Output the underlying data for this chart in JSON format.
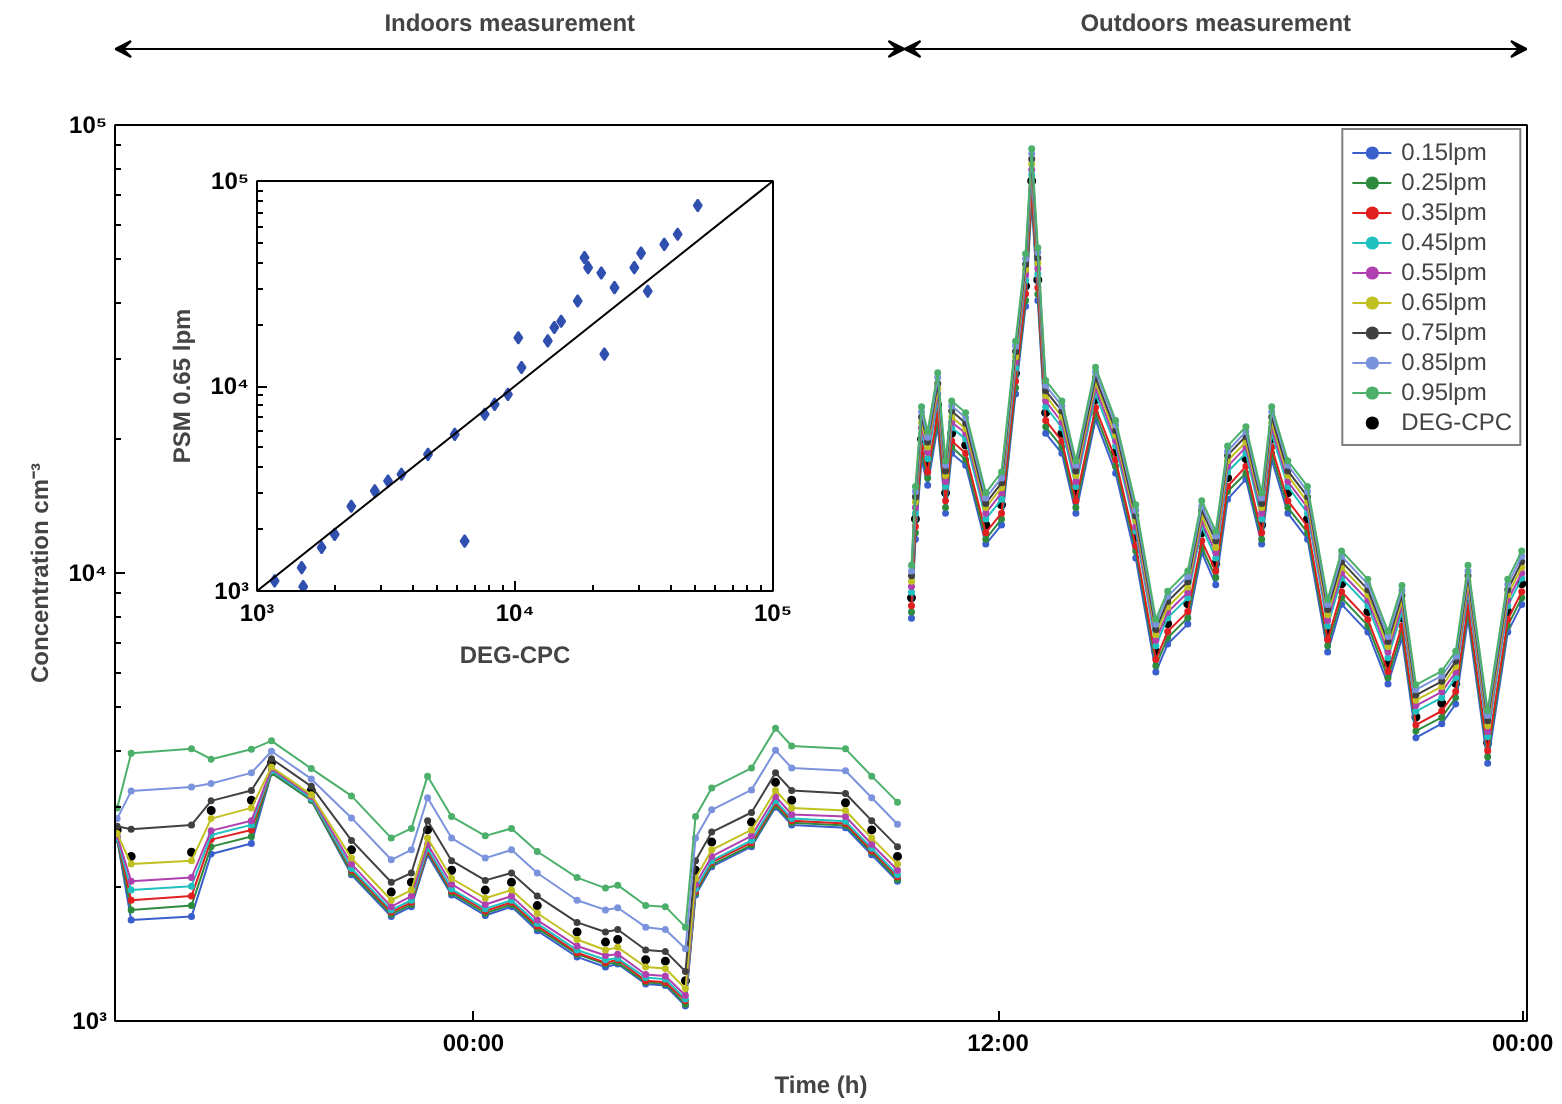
{
  "chart_data": [
    {
      "type": "line",
      "xlabel": "Time (h)",
      "ylabel": "Concentration cm⁻³",
      "log": "y",
      "marker": "circle",
      "line_style": "solid",
      "legend": "top right",
      "grid": false,
      "annotations": [
        "Indoors measurement",
        "Outdoors measurement"
      ],
      "xlim": [
        -8.2,
        24.1
      ],
      "xticks": [
        {
          "value": 0,
          "label": "00:00"
        },
        {
          "value": 12,
          "label": "12:00"
        },
        {
          "value": 24,
          "label": "00:00"
        }
      ],
      "ylim": [
        1000,
        100000
      ],
      "yticks": [
        {
          "value": 1000,
          "label": "10³"
        },
        {
          "value": 10000,
          "label": "10⁴"
        },
        {
          "value": 100000,
          "label": "10⁵"
        }
      ],
      "x": [
        -8.15,
        -7.83,
        -6.45,
        -6.0,
        -5.08,
        -4.62,
        -3.71,
        -2.79,
        -1.88,
        -1.42,
        -1.05,
        -0.5,
        0.27,
        0.87,
        1.46,
        2.37,
        3.02,
        3.3,
        3.94,
        4.39,
        4.85,
        5.08,
        5.45,
        6.36,
        6.91,
        7.28,
        8.51,
        9.11,
        9.7,
        9.86,
        10.02,
        10.11,
        10.25,
        10.39,
        10.62,
        10.8,
        10.94,
        11.26,
        11.72,
        12.08,
        12.4,
        12.63,
        12.77,
        12.91,
        13.09,
        13.46,
        13.78,
        14.23,
        14.69,
        15.15,
        15.61,
        15.88,
        16.34,
        16.66,
        16.98,
        17.25,
        17.67,
        18.03,
        18.26,
        18.63,
        19.08,
        19.54,
        19.86,
        20.46,
        20.92,
        21.24,
        21.56,
        22.15,
        22.47,
        22.75,
        23.2,
        23.66,
        23.98
      ],
      "series": [
        {
          "name": "0.15lpm",
          "color": "#3a5fcd",
          "values": [
            2540,
            1680,
            1710,
            2360,
            2490,
            3580,
            3110,
            2120,
            1710,
            1800,
            2350,
            1910,
            1720,
            1800,
            1590,
            1390,
            1320,
            1340,
            1210,
            1200,
            1080,
            1910,
            2210,
            2450,
            3000,
            2740,
            2700,
            2350,
            2050,
            null,
            7920,
            11900,
            17900,
            15700,
            21300,
            13600,
            18500,
            17400,
            11600,
            12800,
            25100,
            39400,
            67500,
            40600,
            20500,
            18500,
            13600,
            22000,
            16700,
            10800,
            6010,
            6940,
            7690,
            11100,
            9420,
            14600,
            16200,
            11600,
            17900,
            13600,
            11900,
            6660,
            8510,
            7380,
            5650,
            7160,
            4290,
            4610,
            5100,
            7920,
            3760,
            7380,
            8510
          ]
        },
        {
          "name": "0.25lpm",
          "color": "#2e8b3e",
          "values": [
            2540,
            1770,
            1810,
            2450,
            2580,
            3580,
            3110,
            2140,
            1730,
            1820,
            2380,
            1930,
            1740,
            1820,
            1610,
            1410,
            1340,
            1350,
            1220,
            1210,
            1090,
            1930,
            2230,
            2470,
            3030,
            2770,
            2730,
            2380,
            2070,
            null,
            8180,
            12300,
            18500,
            16300,
            22000,
            14000,
            19100,
            17900,
            11900,
            13200,
            25900,
            40600,
            69800,
            41900,
            21200,
            19100,
            14000,
            22700,
            17300,
            11200,
            6210,
            7170,
            7940,
            11400,
            9770,
            15200,
            16700,
            11900,
            18500,
            14000,
            12300,
            6880,
            8800,
            7630,
            5840,
            7390,
            4440,
            4760,
            5270,
            8180,
            3890,
            7630,
            8800
          ]
        },
        {
          "name": "0.35lpm",
          "color": "#e02020",
          "values": [
            2560,
            1860,
            1900,
            2540,
            2670,
            3620,
            3140,
            2170,
            1750,
            1840,
            2400,
            1950,
            1760,
            1840,
            1630,
            1420,
            1350,
            1370,
            1230,
            1220,
            1110,
            1950,
            2260,
            2500,
            3070,
            2800,
            2760,
            2400,
            2100,
            null,
            8450,
            12700,
            19100,
            16800,
            22800,
            14500,
            19700,
            18500,
            12300,
            13600,
            26800,
            42000,
            72000,
            43300,
            21900,
            19700,
            14500,
            23400,
            17900,
            11500,
            6410,
            7400,
            8200,
            11800,
            10100,
            15600,
            17300,
            12300,
            19100,
            14500,
            12700,
            7100,
            9080,
            7870,
            6030,
            7630,
            4580,
            4920,
            5440,
            8450,
            4010,
            7870,
            9080
          ]
        },
        {
          "name": "0.45lpm",
          "color": "#20c0c0",
          "values": [
            2560,
            1960,
            2000,
            2600,
            2740,
            3620,
            3140,
            2190,
            1770,
            1860,
            2430,
            1970,
            1780,
            1860,
            1650,
            1440,
            1370,
            1380,
            1250,
            1240,
            1120,
            1970,
            2280,
            2530,
            3100,
            2830,
            2790,
            2430,
            2120,
            null,
            9060,
            13600,
            20500,
            18000,
            24400,
            15600,
            21100,
            19900,
            13200,
            14600,
            28700,
            45000,
            77300,
            46500,
            23500,
            21100,
            15600,
            25100,
            19200,
            12400,
            6880,
            7940,
            8800,
            12700,
            10800,
            16800,
            18500,
            13200,
            20500,
            15600,
            13600,
            7620,
            9740,
            8450,
            6470,
            8190,
            4910,
            5270,
            5840,
            9060,
            4310,
            8450,
            9740
          ]
        },
        {
          "name": "0.55lpm",
          "color": "#b040b0",
          "values": [
            2590,
            2050,
            2090,
            2660,
            2800,
            3660,
            3170,
            2240,
            1800,
            1900,
            2480,
            2020,
            1820,
            1900,
            1680,
            1470,
            1400,
            1410,
            1270,
            1260,
            1140,
            2020,
            2330,
            2590,
            3170,
            2890,
            2860,
            2480,
            2170,
            null,
            9330,
            14000,
            21100,
            18600,
            25100,
            16000,
            21700,
            20500,
            13600,
            15100,
            29600,
            46300,
            79500,
            47800,
            24200,
            21700,
            16000,
            25900,
            19700,
            12700,
            7080,
            8170,
            9050,
            13000,
            11100,
            17300,
            19100,
            13600,
            21100,
            16000,
            14000,
            7840,
            10000,
            8690,
            6660,
            8430,
            5060,
            5430,
            6010,
            9330,
            4430,
            8690,
            10000
          ]
        },
        {
          "name": "0.65lpm",
          "color": "#c0c020",
          "values": [
            2620,
            2240,
            2280,
            2830,
            2990,
            3690,
            3200,
            2310,
            1860,
            1960,
            2560,
            2080,
            1880,
            1960,
            1740,
            1520,
            1440,
            1460,
            1320,
            1310,
            1180,
            2080,
            2410,
            2670,
            3270,
            2990,
            2950,
            2560,
            2240,
            null,
            9590,
            14400,
            21700,
            19100,
            25800,
            16500,
            22300,
            21000,
            14000,
            15500,
            30400,
            47600,
            81800,
            49200,
            24900,
            22300,
            16500,
            26600,
            20300,
            13100,
            7280,
            8400,
            9310,
            13400,
            11400,
            17800,
            19600,
            14000,
            21700,
            16500,
            14400,
            8070,
            10300,
            8940,
            6850,
            8670,
            5200,
            5580,
            6180,
            9590,
            4560,
            8940,
            10300
          ]
        },
        {
          "name": "0.75lpm",
          "color": "#404040",
          "values": [
            2720,
            2680,
            2740,
            3100,
            3270,
            3850,
            3340,
            2530,
            2040,
            2140,
            2800,
            2280,
            2060,
            2140,
            1900,
            1660,
            1580,
            1600,
            1440,
            1430,
            1290,
            2280,
            2640,
            2920,
            3580,
            3270,
            3220,
            2800,
            2450,
            null,
            9860,
            14800,
            22300,
            19600,
            26500,
            16900,
            23000,
            21600,
            14300,
            15900,
            31200,
            48900,
            84000,
            50500,
            25500,
            23000,
            16900,
            27300,
            20800,
            13400,
            7480,
            8640,
            9560,
            13800,
            11800,
            18300,
            20200,
            14300,
            22300,
            16900,
            14800,
            8290,
            10600,
            9180,
            7030,
            8900,
            5340,
            5730,
            6350,
            9860,
            4680,
            9180,
            10600
          ]
        },
        {
          "name": "0.85lpm",
          "color": "#7b93dd",
          "values": [
            2830,
            3260,
            3330,
            3390,
            3580,
            4000,
            3470,
            2840,
            2290,
            2410,
            3150,
            2560,
            2310,
            2410,
            2140,
            1860,
            1770,
            1790,
            1620,
            1600,
            1450,
            2560,
            2960,
            3280,
            4020,
            3670,
            3620,
            3150,
            2750,
            null,
            10100,
            15200,
            22900,
            20100,
            27300,
            17400,
            23600,
            22200,
            14700,
            16300,
            32100,
            50300,
            86300,
            51900,
            26200,
            23600,
            17400,
            28100,
            21400,
            13800,
            7680,
            8870,
            9820,
            14100,
            12100,
            18700,
            20700,
            14700,
            22900,
            17400,
            15200,
            8510,
            10900,
            9430,
            7220,
            9140,
            5490,
            5890,
            6520,
            10100,
            4810,
            9430,
            10900
          ]
        },
        {
          "name": "0.95lpm",
          "color": "#4caf6a",
          "values": [
            2990,
            3960,
            4050,
            3840,
            4040,
            4220,
            3660,
            3180,
            2560,
            2690,
            3520,
            2860,
            2590,
            2690,
            2390,
            2090,
            1980,
            2010,
            1810,
            1800,
            1620,
            2860,
            3310,
            3670,
            4500,
            4110,
            4050,
            3520,
            3080,
            null,
            10400,
            15600,
            23500,
            20700,
            28000,
            17800,
            24200,
            22800,
            15100,
            16800,
            32900,
            51600,
            88500,
            53200,
            26900,
            24200,
            17800,
            28800,
            21900,
            14200,
            7880,
            9100,
            10100,
            14500,
            12400,
            19200,
            21200,
            15100,
            23500,
            17800,
            15600,
            8730,
            11200,
            9680,
            7410,
            9380,
            5630,
            6040,
            6690,
            10400,
            4930,
            9680,
            11200
          ]
        },
        {
          "name": "DEG-CPC",
          "type": "scatter",
          "color": "#000000",
          "values": [
            2670,
            2330,
            2380,
            2950,
            3110,
            3770,
            3270,
            2410,
            1940,
            2040,
            2670,
            2170,
            1960,
            2040,
            1810,
            1580,
            1500,
            1520,
            1370,
            1360,
            1230,
            2170,
            2510,
            2780,
            3410,
            3110,
            3070,
            2670,
            2330,
            null,
            8800,
            13200,
            19900,
            17500,
            23700,
            15100,
            20500,
            19300,
            12800,
            14200,
            27900,
            43700,
            75000,
            45100,
            22800,
            20500,
            15100,
            24400,
            18600,
            12000,
            6680,
            7710,
            8540,
            12300,
            10500,
            16300,
            18000,
            12800,
            19900,
            15100,
            13200,
            7400,
            9460,
            8200,
            6280,
            7950,
            4770,
            5120,
            5670,
            8800,
            4180,
            8200,
            9460
          ]
        }
      ]
    },
    {
      "type": "scatter",
      "xlabel": "DEG-CPC",
      "ylabel": "PSM 0.65 lpm",
      "log": "xy",
      "grid": false,
      "xlim": [
        1000,
        100000
      ],
      "xticks": [
        {
          "value": 1000,
          "label": "10³"
        },
        {
          "value": 10000,
          "label": "10⁴"
        },
        {
          "value": 100000,
          "label": "10⁵"
        }
      ],
      "ylim": [
        1000,
        100000
      ],
      "yticks": [
        {
          "value": 1000,
          "label": "10³"
        },
        {
          "value": 10000,
          "label": "10⁴"
        },
        {
          "value": 100000,
          "label": "10⁵"
        }
      ],
      "series": [
        {
          "color": "#3050b0",
          "marker": "diamond",
          "x": [
            1170,
            1490,
            1510,
            1780,
            2000,
            2320,
            2860,
            3220,
            3630,
            4600,
            5840,
            6380,
            7630,
            8340,
            9390,
            10300,
            10600,
            13400,
            14200,
            15100,
            17500,
            18600,
            19200,
            21600,
            22200,
            24300,
            29000,
            30800,
            32700,
            37900,
            42700,
            51100
          ],
          "values": [
            1120,
            1300,
            1050,
            1630,
            1890,
            2590,
            3080,
            3440,
            3710,
            4640,
            5810,
            1750,
            7280,
            8140,
            9100,
            17200,
            12300,
            16600,
            19300,
            20700,
            26000,
            42300,
            37800,
            35600,
            14300,
            30200,
            37800,
            44500,
            29000,
            49100,
            55000,
            75900
          ]
        },
        {
          "type": "line",
          "color": "#000000",
          "x": [
            1000,
            100000
          ],
          "values": [
            1000,
            100000
          ]
        }
      ]
    }
  ]
}
